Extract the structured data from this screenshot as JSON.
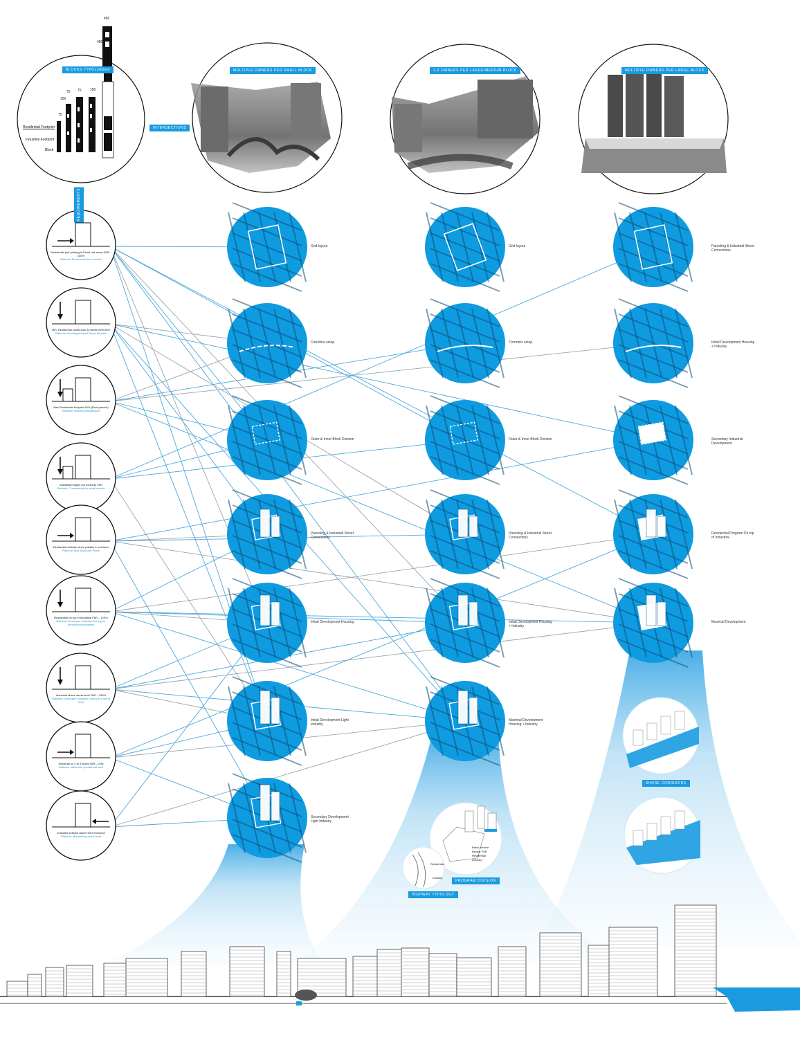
{
  "colors": {
    "accent": "#1a9be0",
    "line_blue": "#4aa8dc",
    "line_grey": "#9aa4ad"
  },
  "header": {
    "typologies_tag": "BLOCKS TYPOLOGIES",
    "intersections_tag": "INTERSECTIONS",
    "requirements_tag": "REQUIREMENTS",
    "scale_top": "450",
    "scale_mid": "450",
    "scale_150": "150",
    "scale_75a": "75",
    "scale_75b": "75",
    "scale_150b": "150",
    "scale_75c": "75",
    "label_residential": "Residential Footprint",
    "label_industrial": "Industrial Footprint",
    "label_block": "Block"
  },
  "scenarios": [
    {
      "label": "MULTIPLE OWNERS PER SMALL BLOCK"
    },
    {
      "label": "1-2 OWNERS PER LARGE/MEDIUM BLOCK"
    },
    {
      "label": "MULTIPLE OWNERS PER LARGE BLOCK"
    }
  ],
  "rules": [
    {
      "text": "Residential pier parking in Flood risk areas FAR – 150%",
      "rationale": "Rational: Flood protection corridor"
    },
    {
      "text": "Min. Residential continuous To street level 50%",
      "rationale": "Rational: Avoiding blocked Street facades"
    },
    {
      "text": "Max Residential footprint 60% (Roof parcels)",
      "rationale": "Rational: Avoiding megablocks"
    },
    {
      "text": "Industrial bridges not count as FAR",
      "rationale": "Rational: Connectivity for small parcels"
    },
    {
      "text": "Residential setback when parallel to corridors",
      "rationale": "Rational: Max Exposure Plane"
    },
    {
      "text": "Residential on top of Industrial FAR – 120%",
      "rationale": "Rational: Developer Incentive Zoning for Introducing Industries"
    },
    {
      "text": "Industrial above street level FAR – 150%",
      "rationale": "Rational: Developer Incentive Zoning For street level"
    },
    {
      "text": "Industrial on 2 to 5 floors FAR – 0.95",
      "rationale": "Rational: Maximum operational area"
    },
    {
      "text": "Industrial setback above 30% envelope",
      "rationale": "Rational: Maintaining street level"
    }
  ],
  "col1_steps": [
    "Grid layout",
    "Corridors setup",
    "Outer & Inner Block Division",
    "Parceling & Industrial Street Connections",
    "Initial Development Housing",
    "Initial Development Light Industry",
    "Secondary Development Light Industry"
  ],
  "col2_steps": [
    "Grid layout",
    "Corridors setup",
    "Outer & Inner Block Division",
    "Parceling & Industrial Street Connections",
    "Initial Development Housing + Industry",
    "Maximal Development Housing + Industry"
  ],
  "col3_steps": [
    "Parceling & Industrial Street Connections",
    "Initial Development Housing + Industry",
    "Secondary Industrial Development",
    "Residential Program On top of Industrial",
    "Maximal Development"
  ],
  "bottom_tags": {
    "program": "PROGRAM DIVISION",
    "highway": "HIGHWAY TYPOLOGY",
    "shore": "SHORE CORRIDORS"
  },
  "program_labels": {
    "a": "Basic corridor",
    "b": "Bazaar FAR",
    "c": "Residential",
    "d": "Industry",
    "e": "Residential",
    "f": "Industry"
  }
}
